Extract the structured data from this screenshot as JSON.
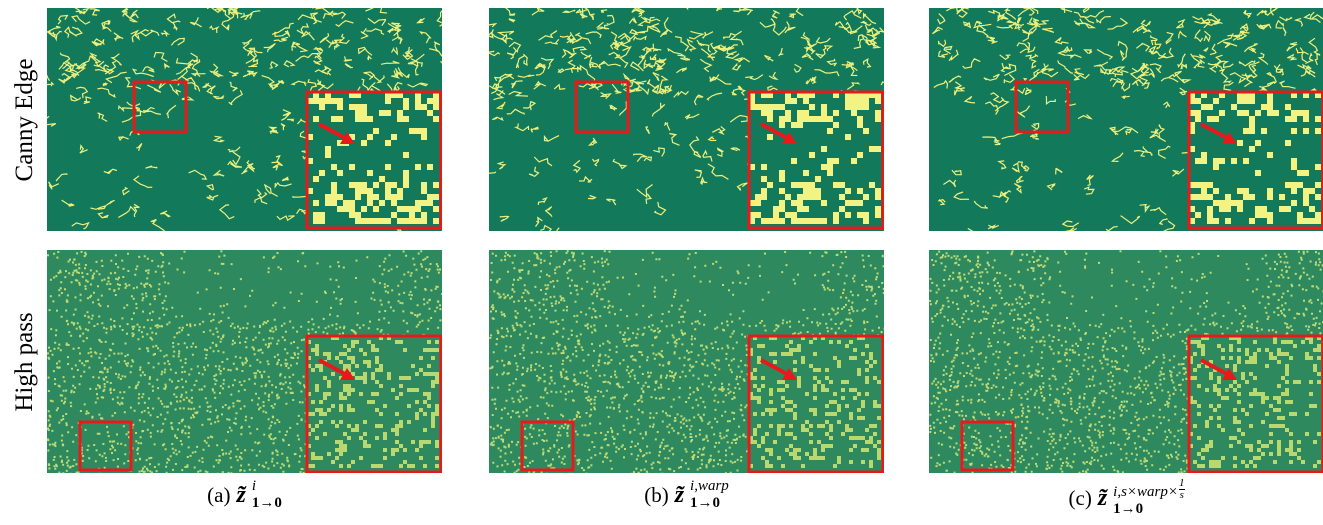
{
  "row_labels": [
    "Canny Edge",
    "High pass"
  ],
  "columns": [
    {
      "label": "(a)",
      "symbol": "z̃",
      "superscript": "i",
      "subscript": "1→0"
    },
    {
      "label": "(b)",
      "symbol": "z̃",
      "superscript": "i,warp",
      "subscript": "1→0"
    },
    {
      "label": "(c)",
      "symbol": "z̃",
      "superscript": "i,s×warp×",
      "superscript_fraction": {
        "numerator": "1",
        "denominator": "s"
      },
      "subscript": "1→0"
    }
  ]
}
